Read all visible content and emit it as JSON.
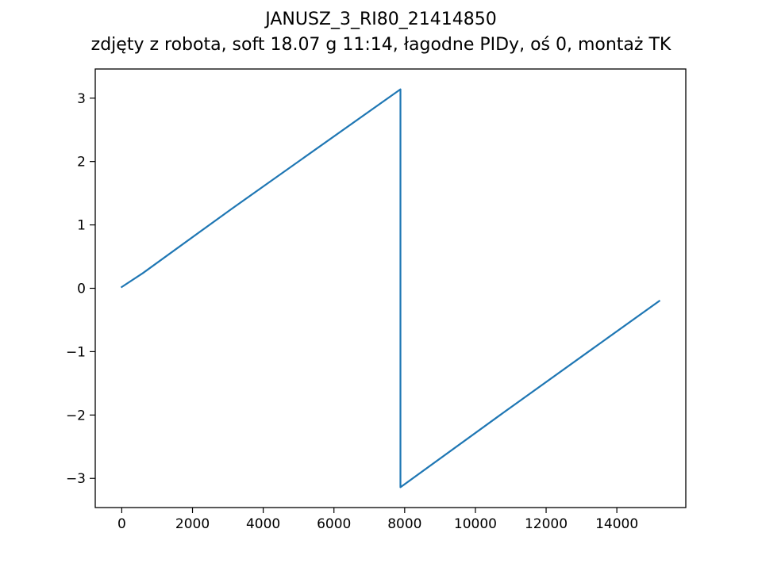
{
  "chart_data": {
    "type": "line",
    "title": "JANUSZ_3_RI80_21414850",
    "subtitle": "zdjęty z robota, soft 18.07 g 11:14, łagodne PIDy, oś 0, montaż TK",
    "xlabel": "",
    "ylabel": "",
    "xlim": [
      -750,
      15950
    ],
    "ylim": [
      -3.46,
      3.46
    ],
    "xticks": [
      0,
      2000,
      4000,
      6000,
      8000,
      10000,
      12000,
      14000
    ],
    "xtick_labels": [
      "0",
      "2000",
      "4000",
      "6000",
      "8000",
      "10000",
      "12000",
      "14000"
    ],
    "yticks": [
      -3,
      -2,
      -1,
      0,
      1,
      2,
      3
    ],
    "ytick_labels": [
      "−3",
      "−2",
      "−1",
      "0",
      "1",
      "2",
      "3"
    ],
    "grid": false,
    "legend": "none",
    "series": [
      {
        "color": "#1f77b4",
        "x": [
          0,
          600,
          3100,
          7880,
          7880,
          10700,
          13300,
          15200
        ],
        "y": [
          0.02,
          0.24,
          1.25,
          3.14,
          -3.14,
          -2.0,
          -0.96,
          -0.2
        ]
      }
    ]
  }
}
